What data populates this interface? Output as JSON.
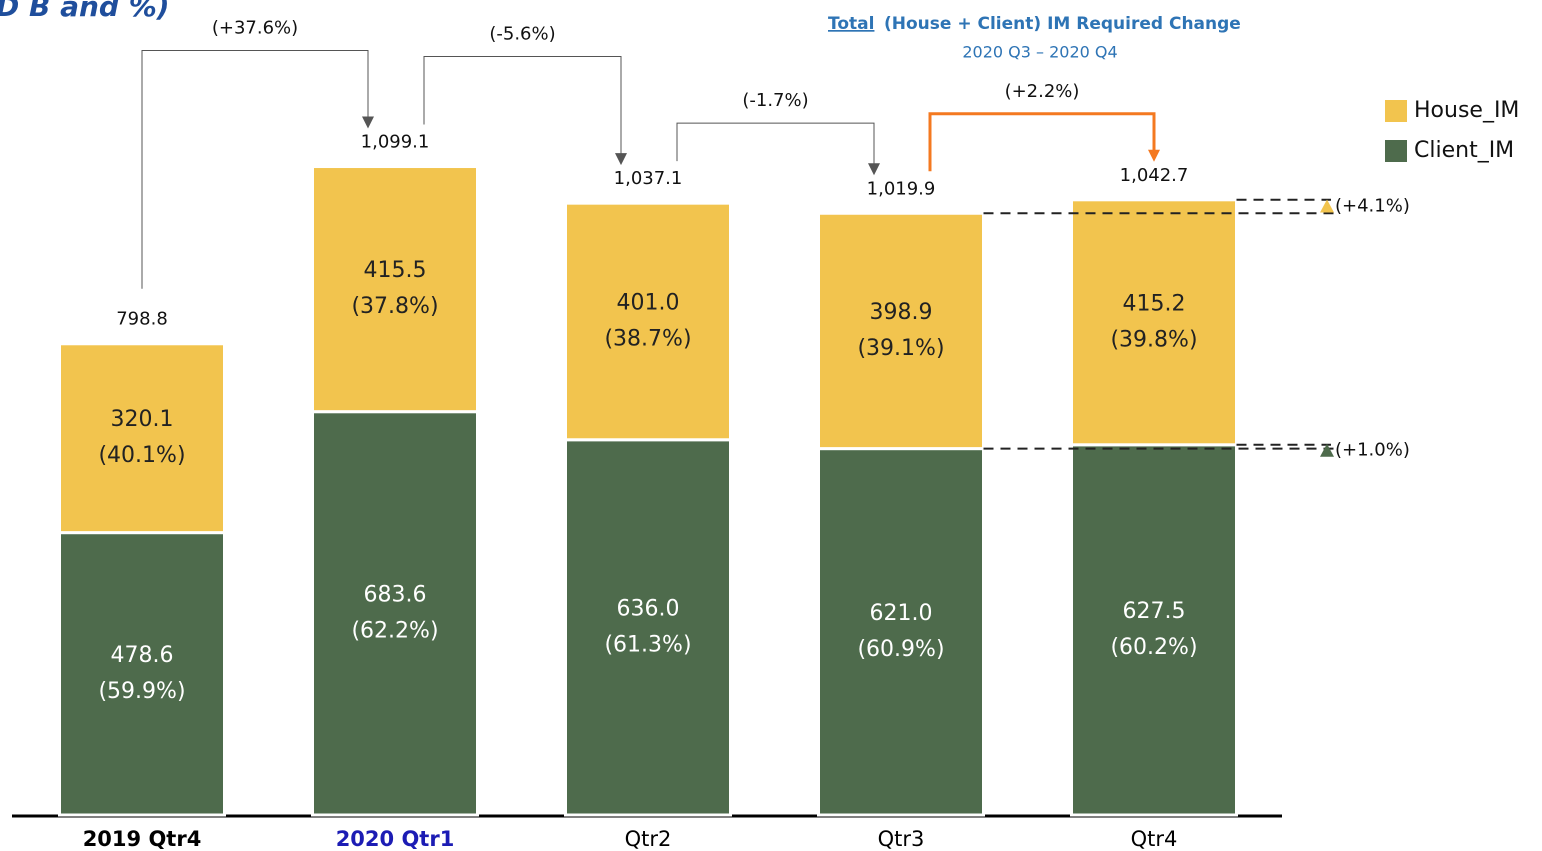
{
  "chart_data": {
    "type": "stacked_bar",
    "title": "D B and %)",
    "header_underlined": "Total",
    "header": "(House + Client) IM Required Change",
    "subtitle": "2020 Q3 – 2020 Q4",
    "categories": [
      "2019 Qtr4",
      "2020 Qtr1",
      "Qtr2",
      "Qtr3",
      "Qtr4"
    ],
    "category_colors": [
      "#000000",
      "#1c1cb4",
      "#000000",
      "#000000",
      "#000000"
    ],
    "category_bold": [
      true,
      true,
      false,
      false,
      false
    ],
    "series": [
      {
        "name": "Client_IM",
        "color": "#4e6b4c",
        "values": [
          478.6,
          683.6,
          636.0,
          621.0,
          627.5
        ],
        "value_labels": [
          "478.6",
          "683.6",
          "636.0",
          "621.0",
          "627.5"
        ],
        "percent_labels": [
          "(59.9%)",
          "(62.2%)",
          "(61.3%)",
          "(60.9%)",
          "(60.2%)"
        ]
      },
      {
        "name": "House_IM",
        "color": "#f2c44e",
        "values": [
          320.1,
          415.5,
          401.0,
          398.9,
          415.2
        ],
        "value_labels": [
          "320.1",
          "415.5",
          "401.0",
          "398.9",
          "415.2"
        ],
        "percent_labels": [
          "(40.1%)",
          "(37.8%)",
          "(38.7%)",
          "(39.1%)",
          "(39.8%)"
        ]
      }
    ],
    "totals": [
      798.8,
      1099.1,
      1037.1,
      1019.9,
      1042.7
    ],
    "total_labels": [
      "798.8",
      "1,099.1",
      "1,037.1",
      "1,019.9",
      "1,042.7"
    ],
    "changes": [
      "(+37.6%)",
      "(-5.6%)",
      "(-1.7%)",
      "(+2.2%)"
    ],
    "change_colors": [
      "#555555",
      "#555555",
      "#555555",
      "#f47920"
    ],
    "series_changes": [
      "(+1.0%)",
      "(+4.1%)"
    ],
    "ylim": [
      0,
      1100
    ]
  }
}
